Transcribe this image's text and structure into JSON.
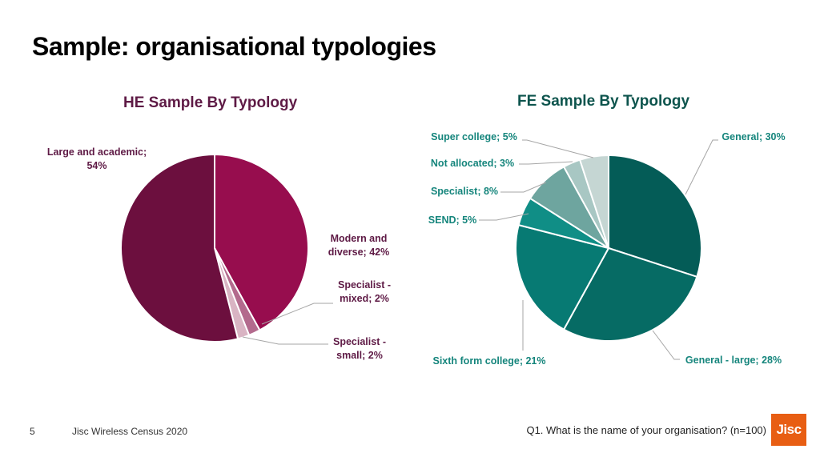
{
  "slide": {
    "title": "Sample: organisational typologies",
    "page_number": "5",
    "footer": "Jisc Wireless Census 2020",
    "question": "Q1. What is the name of your organisation? (n=100)",
    "logo_text": "Jisc",
    "logo_color": "#e85e13"
  },
  "chart_data": [
    {
      "type": "pie",
      "title": "HE Sample By Typology",
      "title_color": "#5e1a45",
      "label_color": "#5e1a45",
      "slices": [
        {
          "label": "Modern and diverse",
          "value": 42,
          "color": "#970d4e",
          "label_text": [
            "Modern and",
            "diverse; 42%"
          ]
        },
        {
          "label": "Specialist - mixed",
          "value": 2,
          "color": "#b36a8d",
          "label_text": [
            "Specialist -",
            "mixed; 2%"
          ]
        },
        {
          "label": "Specialist - small",
          "value": 2,
          "color": "#d9b4c3",
          "label_text": [
            "Specialist -",
            "small; 2%"
          ]
        },
        {
          "label": "Large and academic",
          "value": 54,
          "color": "#6c0f3e",
          "label_text": [
            "Large and academic;",
            "54%"
          ]
        }
      ]
    },
    {
      "type": "pie",
      "title": "FE Sample By Typology",
      "title_color": "#0d544d",
      "label_color": "#15857c",
      "slices": [
        {
          "label": "General",
          "value": 30,
          "color": "#045c57",
          "label_text": [
            "General; 30%"
          ]
        },
        {
          "label": "General - large",
          "value": 28,
          "color": "#066b64",
          "label_text": [
            "General - large; 28%"
          ]
        },
        {
          "label": "Sixth form college",
          "value": 21,
          "color": "#077a73",
          "label_text": [
            "Sixth form college; 21%"
          ]
        },
        {
          "label": "SEND",
          "value": 5,
          "color": "#108e86",
          "label_text": [
            "SEND; 5%"
          ]
        },
        {
          "label": "Specialist",
          "value": 8,
          "color": "#6ea59f",
          "label_text": [
            "Specialist; 8%"
          ]
        },
        {
          "label": "Not allocated",
          "value": 3,
          "color": "#a8c7c3",
          "label_text": [
            "Not allocated; 3%"
          ]
        },
        {
          "label": "Super college",
          "value": 5,
          "color": "#c5d6d3",
          "label_text": [
            "Super college; 5%"
          ]
        }
      ]
    }
  ]
}
